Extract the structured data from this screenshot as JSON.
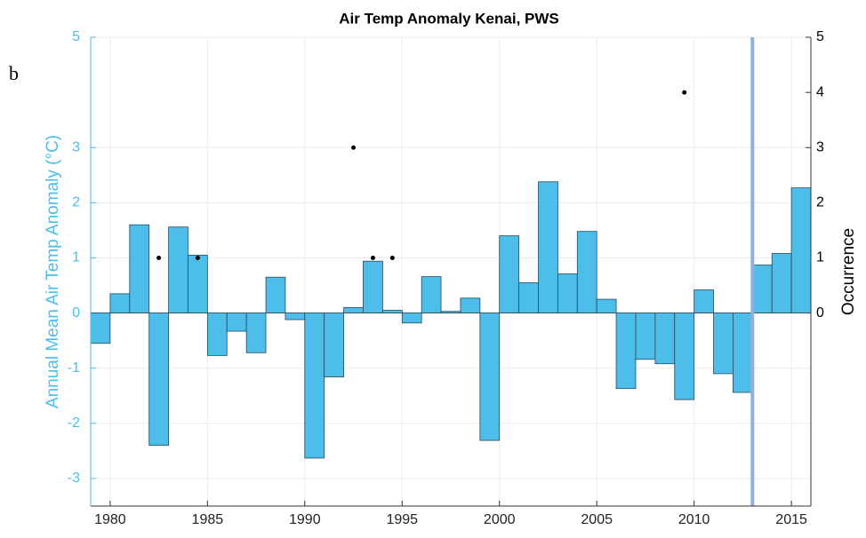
{
  "chart_data": {
    "type": "bar",
    "title": "Air Temp Anomaly Kenai, PWS",
    "panel_label": "b",
    "ylabel": "Annual Mean Air Temp Anomaly (°C)",
    "y2label": "Occurrence",
    "x": [
      1979,
      1980,
      1981,
      1982,
      1983,
      1984,
      1985,
      1986,
      1987,
      1988,
      1989,
      1990,
      1991,
      1992,
      1993,
      1994,
      1995,
      1996,
      1997,
      1998,
      1999,
      2000,
      2001,
      2002,
      2003,
      2004,
      2005,
      2006,
      2007,
      2008,
      2009,
      2010,
      2011,
      2012,
      2013,
      2014,
      2015
    ],
    "series": [
      {
        "type": "bar",
        "color": "#4dbde9",
        "values": [
          -0.55,
          0.35,
          1.6,
          -2.4,
          1.56,
          1.05,
          -0.77,
          -0.33,
          -0.72,
          0.65,
          -0.12,
          -2.63,
          -1.16,
          0.1,
          0.94,
          0.05,
          -0.18,
          0.66,
          0.03,
          0.27,
          -2.31,
          1.4,
          0.55,
          2.38,
          0.71,
          1.48,
          0.25,
          -1.37,
          -0.84,
          -0.92,
          -1.57,
          0.42,
          -1.1,
          -1.44,
          0.87,
          1.08,
          2.27
        ]
      },
      {
        "type": "scatter",
        "axis": "y2",
        "color": "#000000",
        "x": [
          1982.5,
          1984.5,
          1992.5,
          1993.5,
          1994.5,
          2009.5
        ],
        "values": [
          1,
          1,
          3,
          1,
          1,
          4
        ]
      }
    ],
    "reference_line_x": 2013,
    "reference_line_color": "#8fb0dc",
    "xlim": [
      1979,
      2016
    ],
    "xticks": [
      1980,
      1985,
      1990,
      1995,
      2000,
      2005,
      2010,
      2015
    ],
    "ylim": [
      -3.5,
      5
    ],
    "yticks": [
      -3,
      -2,
      -1,
      0,
      1,
      2,
      3,
      5
    ],
    "y2lim": [
      -3.5,
      5
    ],
    "y2ticks": [
      0,
      1,
      2,
      3,
      4,
      5
    ],
    "grid": true
  }
}
